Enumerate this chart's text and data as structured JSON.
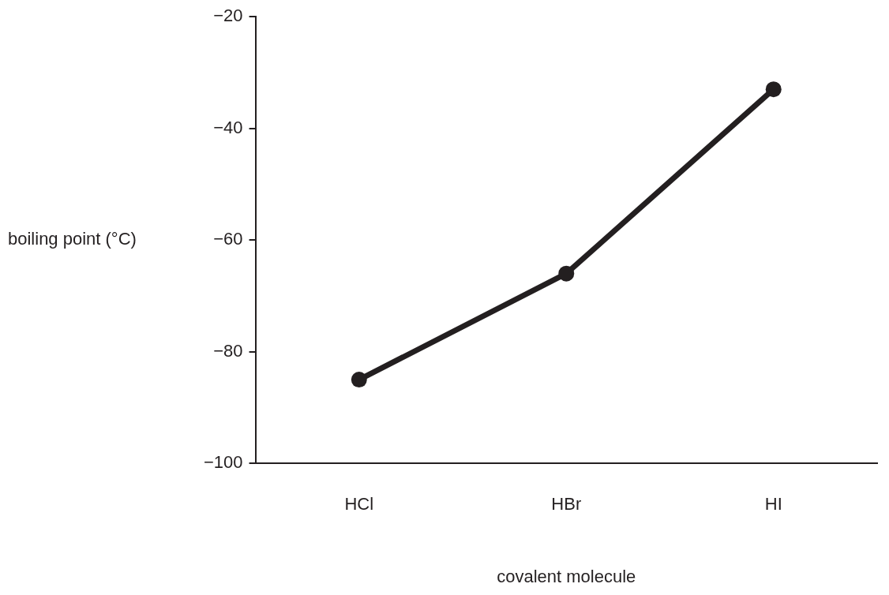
{
  "chart_data": {
    "type": "line",
    "xlabel": "covalent molecule",
    "ylabel": "boiling point (°C)",
    "categories": [
      "HCl",
      "HBr",
      "HI"
    ],
    "series": [
      {
        "color": "#231f20",
        "values": [
          -85,
          -66,
          -33
        ]
      }
    ],
    "ylim": [
      -100,
      -20
    ],
    "yticks": [
      -100,
      -80,
      -60,
      -40,
      -20
    ],
    "grid": false,
    "legend": false,
    "marker": "circle",
    "line_style": "solid"
  }
}
